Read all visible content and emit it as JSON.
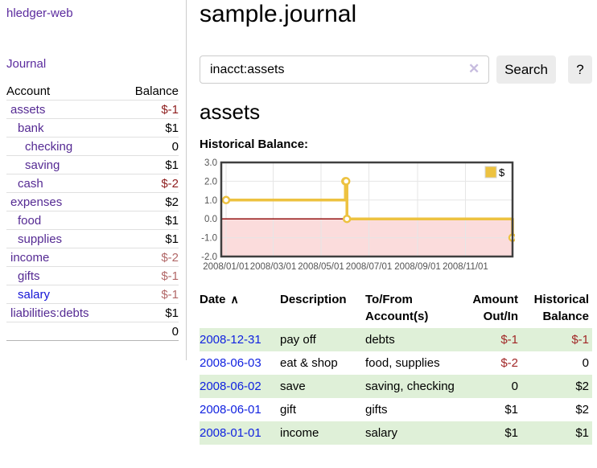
{
  "app": {
    "brand": "hledger-web"
  },
  "sidebar": {
    "journal_link": "Journal",
    "accounts": {
      "header_account": "Account",
      "header_balance": "Balance",
      "rows": [
        {
          "name": "assets",
          "indent": 1,
          "bold": true,
          "balance": "$-1",
          "neg": true,
          "link": "purple"
        },
        {
          "name": "bank",
          "indent": 2,
          "bold": true,
          "balance": "$1",
          "neg": false,
          "link": "purple"
        },
        {
          "name": "checking",
          "indent": 3,
          "bold": true,
          "balance": "0",
          "neg": false,
          "link": "purple"
        },
        {
          "name": "saving",
          "indent": 3,
          "bold": true,
          "balance": "$1",
          "neg": false,
          "link": "purple"
        },
        {
          "name": "cash",
          "indent": 2,
          "bold": true,
          "balance": "$-2",
          "neg": true,
          "link": "purple"
        },
        {
          "name": "expenses",
          "indent": 1,
          "bold": false,
          "balance": "$2",
          "neg": false,
          "link": "purple"
        },
        {
          "name": "food",
          "indent": 2,
          "bold": false,
          "balance": "$1",
          "neg": false,
          "link": "purple"
        },
        {
          "name": "supplies",
          "indent": 2,
          "bold": false,
          "balance": "$1",
          "neg": false,
          "link": "purple"
        },
        {
          "name": "income",
          "indent": 1,
          "bold": false,
          "balance": "$-2",
          "neg": true,
          "link": "purple"
        },
        {
          "name": "gifts",
          "indent": 2,
          "bold": false,
          "balance": "$-1",
          "neg": true,
          "link": "purple"
        },
        {
          "name": "salary",
          "indent": 2,
          "bold": false,
          "balance": "$-1",
          "neg": true,
          "link": "blue"
        },
        {
          "name": "liabilities:debts",
          "indent": 1,
          "bold": false,
          "balance": "$1",
          "neg": false,
          "link": "purple"
        }
      ],
      "total": "0"
    }
  },
  "main": {
    "title": "sample.journal",
    "search": {
      "value": "inacct:assets",
      "clear_icon": "✕",
      "search_button": "Search",
      "help_button": "?"
    },
    "account_heading": "assets",
    "chart_heading": "Historical Balance:"
  },
  "chart_data": {
    "type": "line",
    "title": "Historical Balance",
    "style": "step-after",
    "series": [
      {
        "name": "$",
        "color": "#edc240",
        "points": [
          {
            "date": "2008-01-01",
            "value": 1
          },
          {
            "date": "2008-06-01",
            "value": 2
          },
          {
            "date": "2008-06-02",
            "value": 2
          },
          {
            "date": "2008-06-03",
            "value": 0
          },
          {
            "date": "2008-12-31",
            "value": -1
          }
        ]
      }
    ],
    "x_ticks": [
      "2008/01/01",
      "2008/03/01",
      "2008/05/01",
      "2008/07/01",
      "2008/09/01",
      "2008/11/01"
    ],
    "y_ticks": [
      "3.0",
      "2.0",
      "1.0",
      "0.0",
      "-1.0",
      "-2.0"
    ],
    "ylim": [
      -2,
      3
    ],
    "xlim": [
      "2008-01-01",
      "2008-12-31"
    ],
    "grid": true,
    "grid_color": "#e6e6e6",
    "border_color": "#3f3f3f",
    "zero_line_color": "#8b0000",
    "negative_region_color": "#fbdcdc",
    "legend": {
      "label": "$",
      "swatch_color": "#edc240",
      "position": "top-right"
    }
  },
  "register": {
    "headers": {
      "date": "Date",
      "sort_icon": "∧",
      "description": "Description",
      "accounts": "To/From Account(s)",
      "amount": "Amount Out/In",
      "balance": "Historical Balance"
    },
    "rows": [
      {
        "date": "2008-12-31",
        "description": "pay off",
        "accounts": "debts",
        "amount": "$-1",
        "amount_neg": true,
        "balance": "$-1",
        "balance_neg": true,
        "shaded": true
      },
      {
        "date": "2008-06-03",
        "description": "eat & shop",
        "accounts": "food, supplies",
        "amount": "$-2",
        "amount_neg": true,
        "balance": "0",
        "balance_neg": false,
        "shaded": false
      },
      {
        "date": "2008-06-02",
        "description": "save",
        "accounts": "saving, checking",
        "amount": "0",
        "amount_neg": false,
        "balance": "$2",
        "balance_neg": false,
        "shaded": true
      },
      {
        "date": "2008-06-01",
        "description": "gift",
        "accounts": "gifts",
        "amount": "$1",
        "amount_neg": false,
        "balance": "$2",
        "balance_neg": false,
        "shaded": false
      },
      {
        "date": "2008-01-01",
        "description": "income",
        "accounts": "salary",
        "amount": "$1",
        "amount_neg": false,
        "balance": "$1",
        "balance_neg": false,
        "shaded": true
      }
    ]
  }
}
